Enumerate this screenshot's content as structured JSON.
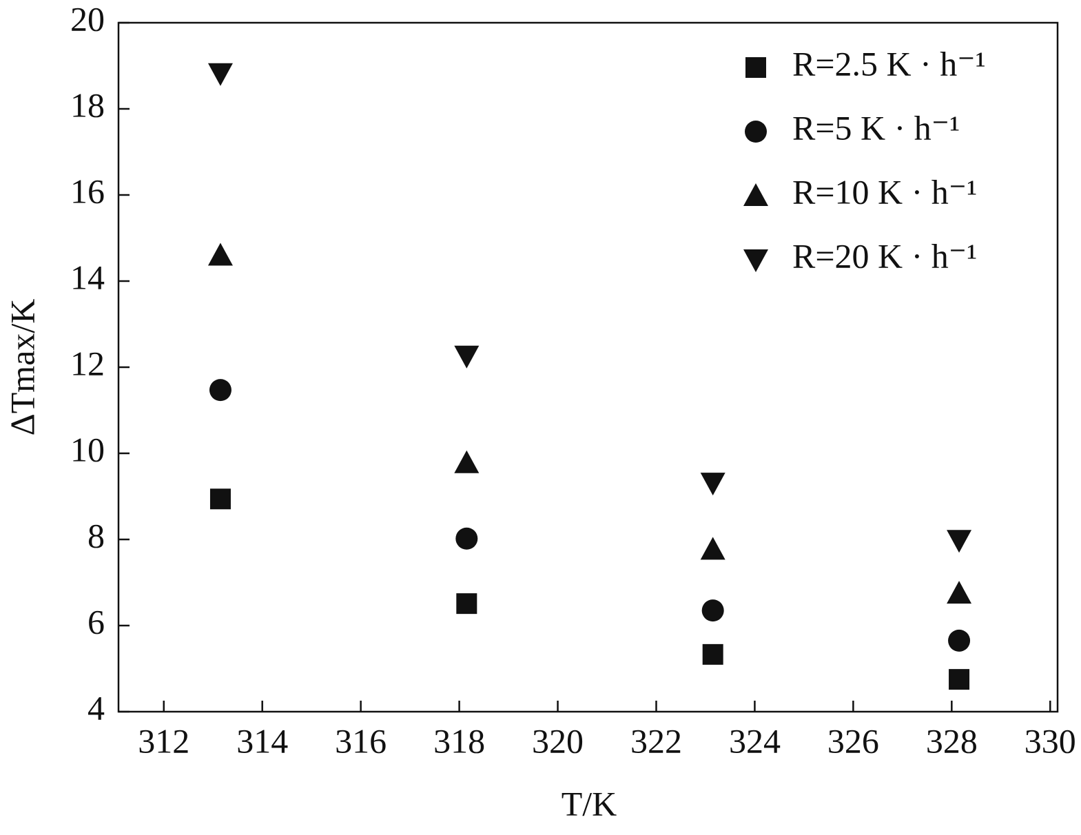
{
  "chart_data": {
    "type": "scatter",
    "x_label": "T/K",
    "y_label": "ΔTmax/K",
    "xlim": [
      311.08,
      330.15
    ],
    "xticks": [
      312,
      314,
      316,
      318,
      320,
      322,
      324,
      326,
      328,
      330
    ],
    "ylim": [
      4,
      20
    ],
    "yticks": [
      4,
      6,
      8,
      10,
      12,
      14,
      16,
      18,
      20
    ],
    "legend": "upper right",
    "series": [
      {
        "name": "R=2.5 K · h⁻¹",
        "marker": "square",
        "color": "#111111",
        "x": [
          313.15,
          318.15,
          323.15,
          328.15
        ],
        "values": [
          8.94,
          6.51,
          5.33,
          4.75
        ]
      },
      {
        "name": "R=5 K · h⁻¹",
        "marker": "circle",
        "color": "#111111",
        "x": [
          313.15,
          318.15,
          323.15,
          328.15
        ],
        "values": [
          11.47,
          8.02,
          6.35,
          5.65
        ]
      },
      {
        "name": "R=10 K · h⁻¹",
        "marker": "triangle-up",
        "color": "#111111",
        "x": [
          313.15,
          318.15,
          323.15,
          328.15
        ],
        "values": [
          14.6,
          9.78,
          7.77,
          6.75
        ]
      },
      {
        "name": "R=20 K · h⁻¹",
        "marker": "triangle-down",
        "color": "#111111",
        "x": [
          313.15,
          318.15,
          323.15,
          328.15
        ],
        "values": [
          18.82,
          12.26,
          9.31,
          7.98
        ]
      }
    ]
  }
}
